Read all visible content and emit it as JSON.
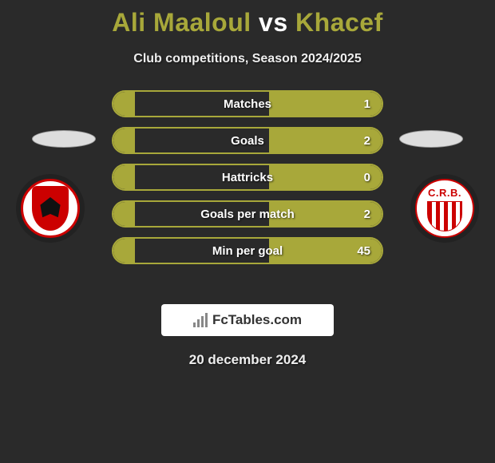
{
  "title": {
    "player1": "Ali Maaloul",
    "vs": "vs",
    "player2": "Khacef",
    "player1_color": "#a8a83a",
    "player2_color": "#a8a83a",
    "vs_color": "#ffffff"
  },
  "subtitle": "Club competitions, Season 2024/2025",
  "clubs": {
    "left": {
      "name": "Al Ahly",
      "primary": "#c00000",
      "secondary": "#ffffff"
    },
    "right": {
      "name": "CR Belouizdad",
      "abbr": "C.R.B.",
      "primary": "#c00000",
      "secondary": "#ffffff"
    }
  },
  "stats": {
    "bar_border_color": "#a8a83a",
    "bar_fill_color": "#a8a83a",
    "label_color": "#ffffff",
    "rows": [
      {
        "label": "Matches",
        "left_pct": 8,
        "right_pct": 42,
        "right_value": "1"
      },
      {
        "label": "Goals",
        "left_pct": 8,
        "right_pct": 42,
        "right_value": "2"
      },
      {
        "label": "Hattricks",
        "left_pct": 8,
        "right_pct": 42,
        "right_value": "0"
      },
      {
        "label": "Goals per match",
        "left_pct": 8,
        "right_pct": 42,
        "right_value": "2"
      },
      {
        "label": "Min per goal",
        "left_pct": 8,
        "right_pct": 42,
        "right_value": "45"
      }
    ]
  },
  "branding": {
    "site": "FcTables.com"
  },
  "date": "20 december 2024",
  "background_color": "#2a2a2a"
}
